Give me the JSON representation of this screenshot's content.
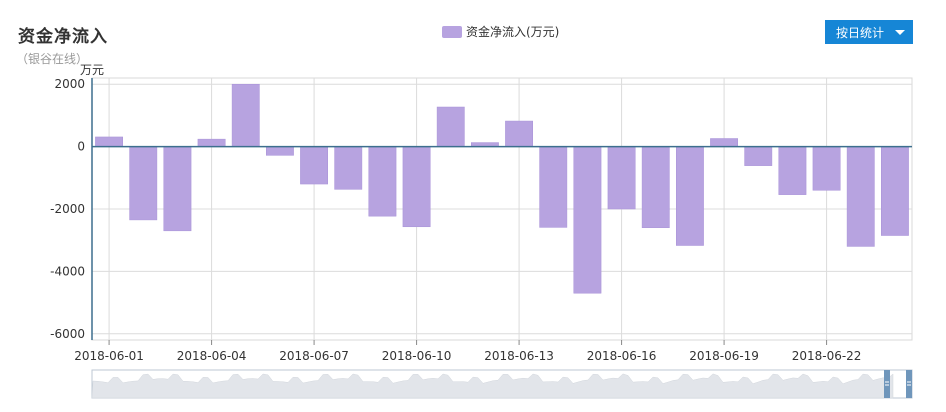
{
  "header": {
    "title": "资金净流入",
    "subtitle": "（银谷在线）",
    "dropdown_label": "按日统计"
  },
  "chart_data": {
    "type": "bar",
    "unit_label": "万元",
    "legend": [
      {
        "name": "资金净流入(万元)",
        "color": "#b7a3e0"
      }
    ],
    "bar_color": "#b7a3e0",
    "ylim": [
      -6200,
      2200
    ],
    "yticks": [
      2000,
      0,
      -2000,
      -4000,
      -6000
    ],
    "ytick_labels": [
      "2000",
      "0",
      "-2000",
      "-4000",
      "-6000"
    ],
    "grid": true,
    "categories": [
      "2018-06-01",
      "2018-06-02",
      "2018-06-03",
      "2018-06-04",
      "2018-06-05",
      "2018-06-06",
      "2018-06-07",
      "2018-06-08",
      "2018-06-09",
      "2018-06-10",
      "2018-06-11",
      "2018-06-12",
      "2018-06-13",
      "2018-06-14",
      "2018-06-15",
      "2018-06-16",
      "2018-06-17",
      "2018-06-18",
      "2018-06-19",
      "2018-06-20",
      "2018-06-21",
      "2018-06-22",
      "2018-06-23",
      "2018-06-24"
    ],
    "xtick_labels": [
      "2018-06-01",
      "2018-06-04",
      "2018-06-07",
      "2018-06-10",
      "2018-06-13",
      "2018-06-16",
      "2018-06-19",
      "2018-06-22"
    ],
    "series": [
      {
        "name": "资金净流入(万元)",
        "values": [
          310,
          -2350,
          -2700,
          240,
          2000,
          -280,
          -1200,
          -1370,
          -2230,
          -2570,
          1270,
          130,
          820,
          -2590,
          -4700,
          -2000,
          -2600,
          -3170,
          260,
          -610,
          -1540,
          -1400,
          -3200,
          -2850
        ]
      }
    ]
  }
}
